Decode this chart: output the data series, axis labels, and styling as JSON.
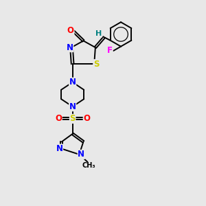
{
  "bg_color": "#e8e8e8",
  "bond_color": "#000000",
  "atom_colors": {
    "O": "#ff0000",
    "S": "#cccc00",
    "N": "#0000ff",
    "F": "#ff00ff",
    "H": "#008080",
    "C": "#000000"
  },
  "title": ""
}
